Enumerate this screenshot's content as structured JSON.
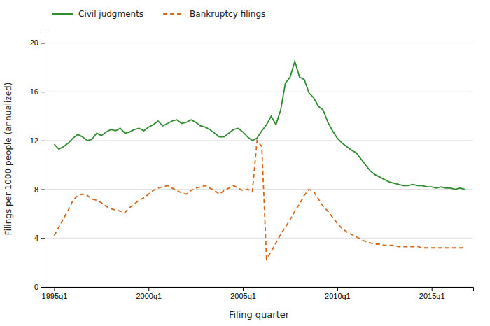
{
  "chart_data": {
    "type": "line",
    "xlabel": "Filing quarter",
    "ylabel": "Filings per 1000 people (annualized)",
    "x": [
      1995,
      1995.25,
      1995.5,
      1995.75,
      1996,
      1996.25,
      1996.5,
      1996.75,
      1997,
      1997.25,
      1997.5,
      1997.75,
      1998,
      1998.25,
      1998.5,
      1998.75,
      1999,
      1999.25,
      1999.5,
      1999.75,
      2000,
      2000.25,
      2000.5,
      2000.75,
      2001,
      2001.25,
      2001.5,
      2001.75,
      2002,
      2002.25,
      2002.5,
      2002.75,
      2003,
      2003.25,
      2003.5,
      2003.75,
      2004,
      2004.25,
      2004.5,
      2004.75,
      2005,
      2005.25,
      2005.5,
      2005.75,
      2006,
      2006.25,
      2006.5,
      2006.75,
      2007,
      2007.25,
      2007.5,
      2007.75,
      2008,
      2008.25,
      2008.5,
      2008.75,
      2009,
      2009.25,
      2009.5,
      2009.75,
      2010,
      2010.25,
      2010.5,
      2010.75,
      2011,
      2011.25,
      2011.5,
      2011.75,
      2012,
      2012.25,
      2012.5,
      2012.75,
      2013,
      2013.25,
      2013.5,
      2013.75,
      2014,
      2014.25,
      2014.5,
      2014.75,
      2015,
      2015.25,
      2015.5,
      2015.75,
      2016,
      2016.25,
      2016.5,
      2016.75
    ],
    "series": [
      {
        "name": "Civil judgments",
        "color": "#2e8b2e",
        "line_style": "solid",
        "values": [
          11.7,
          11.3,
          11.5,
          11.8,
          12.2,
          12.5,
          12.3,
          12.0,
          12.1,
          12.6,
          12.4,
          12.7,
          12.9,
          12.8,
          13.0,
          12.6,
          12.7,
          12.9,
          13.0,
          12.8,
          13.1,
          13.3,
          13.6,
          13.2,
          13.4,
          13.6,
          13.7,
          13.4,
          13.5,
          13.7,
          13.5,
          13.2,
          13.1,
          12.9,
          12.6,
          12.3,
          12.3,
          12.6,
          12.9,
          13.0,
          12.7,
          12.3,
          12.0,
          12.2,
          12.8,
          13.3,
          14.0,
          13.3,
          14.5,
          16.7,
          17.2,
          18.5,
          17.2,
          17.0,
          15.9,
          15.5,
          14.8,
          14.5,
          13.5,
          12.8,
          12.2,
          11.8,
          11.5,
          11.2,
          11.0,
          10.5,
          10.0,
          9.5,
          9.2,
          9.0,
          8.8,
          8.6,
          8.5,
          8.4,
          8.3,
          8.3,
          8.4,
          8.3,
          8.3,
          8.2,
          8.2,
          8.1,
          8.2,
          8.1,
          8.1,
          8.0,
          8.1,
          8.0
        ]
      },
      {
        "name": "Bankruptcy filings",
        "color": "#d2691e",
        "line_style": "dashed",
        "values": [
          4.2,
          4.9,
          5.6,
          6.3,
          7.1,
          7.5,
          7.6,
          7.5,
          7.2,
          7.1,
          6.9,
          6.6,
          6.4,
          6.3,
          6.2,
          6.1,
          6.5,
          6.8,
          7.1,
          7.3,
          7.6,
          7.9,
          8.1,
          8.2,
          8.3,
          8.1,
          7.9,
          7.7,
          7.6,
          7.9,
          8.1,
          8.2,
          8.3,
          8.1,
          7.9,
          7.6,
          7.9,
          8.1,
          8.3,
          8.1,
          7.9,
          8.0,
          7.8,
          12.0,
          11.5,
          2.3,
          2.9,
          3.6,
          4.3,
          4.9,
          5.5,
          6.2,
          6.8,
          7.5,
          8.0,
          7.8,
          7.2,
          6.6,
          6.2,
          5.7,
          5.2,
          4.8,
          4.5,
          4.3,
          4.1,
          3.9,
          3.7,
          3.6,
          3.5,
          3.5,
          3.4,
          3.4,
          3.4,
          3.3,
          3.3,
          3.3,
          3.3,
          3.3,
          3.2,
          3.2,
          3.2,
          3.2,
          3.2,
          3.2,
          3.2,
          3.2,
          3.2,
          3.2
        ]
      }
    ],
    "xlim": [
      1994.5,
      2017.2
    ],
    "xticks": [
      {
        "value": 1995,
        "label": "1995q1"
      },
      {
        "value": 2000,
        "label": "2000q1"
      },
      {
        "value": 2005,
        "label": "2005q1"
      },
      {
        "value": 2010,
        "label": "2010q1"
      },
      {
        "value": 2015,
        "label": "2015q1"
      }
    ],
    "ylim": [
      0,
      21
    ],
    "yticks": [
      0,
      4,
      8,
      12,
      16,
      20
    ],
    "grid": true,
    "legend": "top"
  }
}
